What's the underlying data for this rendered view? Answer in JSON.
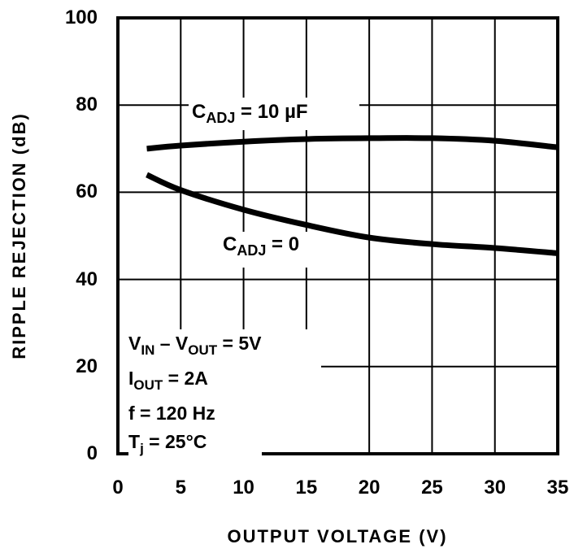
{
  "chart_data": {
    "type": "line",
    "title": "",
    "xlabel": "OUTPUT VOLTAGE (V)",
    "ylabel": "RIPPLE REJECTION (dB)",
    "xlim": [
      0,
      35
    ],
    "ylim": [
      0,
      100
    ],
    "xticks": [
      0,
      5,
      10,
      15,
      20,
      25,
      30,
      35
    ],
    "yticks": [
      0,
      20,
      40,
      60,
      80,
      100
    ],
    "grid": true,
    "legend": "inline labels",
    "series": [
      {
        "name": "C_ADJ = 10 µF",
        "x": [
          2.3,
          5,
          10,
          15,
          20,
          25,
          30,
          35
        ],
        "values": [
          70.0,
          70.7,
          71.6,
          72.2,
          72.4,
          72.4,
          71.8,
          70.3
        ]
      },
      {
        "name": "C_ADJ = 0",
        "x": [
          2.3,
          5,
          10,
          15,
          20,
          25,
          30,
          35
        ],
        "values": [
          64.0,
          60.5,
          56.0,
          52.5,
          49.6,
          48.1,
          47.2,
          46.0
        ]
      }
    ],
    "annotations": {
      "curve_labels": [
        {
          "main": "C",
          "sub": "ADJ",
          "rest": " = 10 µF"
        },
        {
          "main": "C",
          "sub": "ADJ",
          "rest": " = 0"
        }
      ],
      "conditions": [
        {
          "parts": [
            {
              "t": "V"
            },
            {
              "s": "IN"
            },
            {
              "t": " – V"
            },
            {
              "s": "OUT"
            },
            {
              "t": " = 5V"
            }
          ]
        },
        {
          "parts": [
            {
              "t": "I"
            },
            {
              "s": "OUT"
            },
            {
              "t": " = 2A"
            }
          ]
        },
        {
          "parts": [
            {
              "t": "f = 120 Hz"
            }
          ]
        },
        {
          "parts": [
            {
              "t": "T"
            },
            {
              "s": "j"
            },
            {
              "t": " = 25°C"
            }
          ]
        }
      ]
    }
  },
  "labels": {
    "ylabel": "RIPPLE REJECTION (dB)",
    "xlabel": "OUTPUT VOLTAGE (V)",
    "curve1": {
      "main": "C",
      "sub": "ADJ",
      "rest": " = 10 µF"
    },
    "curve2": {
      "main": "C",
      "sub": "ADJ",
      "rest": " = 0"
    },
    "cond": {
      "r1a": "V",
      "r1b": "IN",
      "r1c": " – V",
      "r1d": "OUT",
      "r1e": " = 5V",
      "r2a": "I",
      "r2b": "OUT",
      "r2c": " = 2A",
      "r3": "f = 120 Hz",
      "r4a": "T",
      "r4b": "j",
      "r4c": " = 25°C"
    }
  },
  "colors": {
    "line": "#000000",
    "background": "#ffffff"
  }
}
